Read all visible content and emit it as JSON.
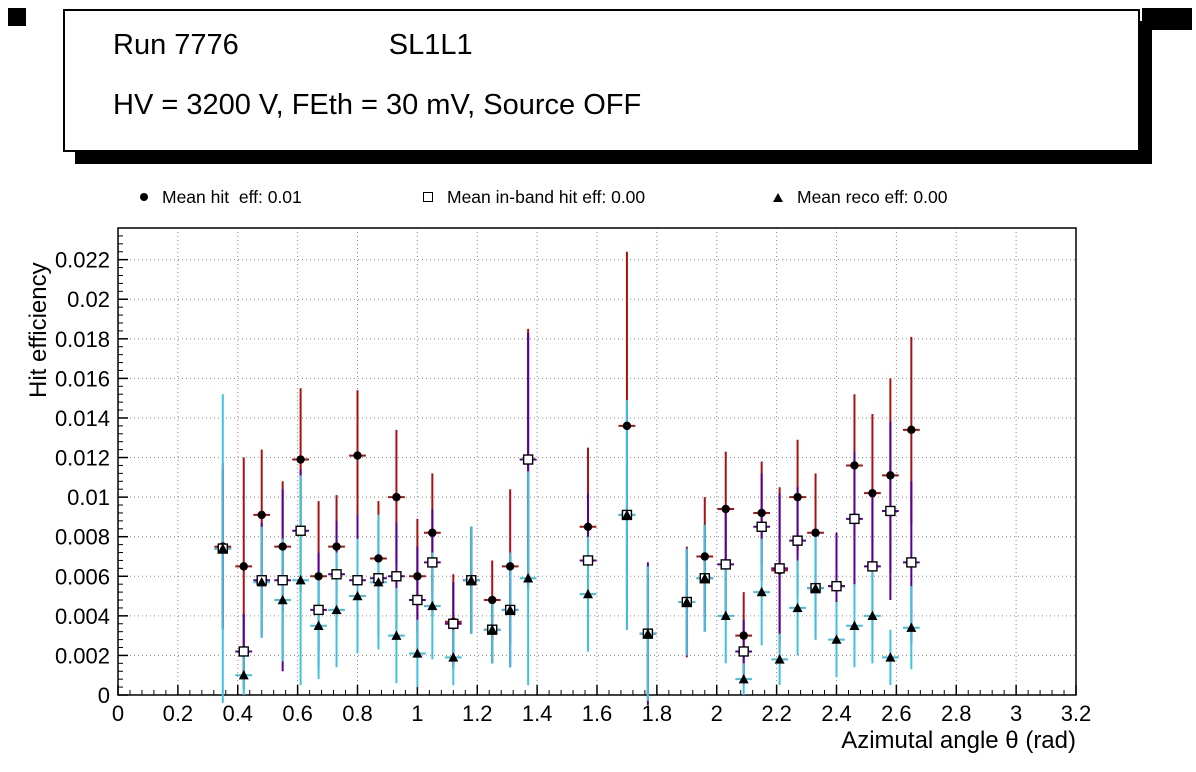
{
  "title_box": {
    "run": "Run 7776",
    "layer": "SL1L1",
    "conditions": "HV = 3200 V, FEth = 30 mV, Source OFF"
  },
  "legend": [
    {
      "marker": "filled-circle",
      "label": "Mean hit  eff: 0.01"
    },
    {
      "marker": "open-square",
      "label": "Mean in-band hit eff: 0.00"
    },
    {
      "marker": "filled-triangle",
      "label": "Mean reco eff: 0.00"
    }
  ],
  "chart_data": {
    "type": "scatter",
    "title": "Run 7776 SL1L1, HV = 3200 V, FEth = 30 mV, Source OFF",
    "xlabel": "Azimutal angle θ (rad)",
    "ylabel": "Hit efficiency",
    "xlim": [
      0,
      3.2
    ],
    "ylim": [
      0,
      0.0236
    ],
    "xticks": [
      0,
      0.2,
      0.4,
      0.6,
      0.8,
      1,
      1.2,
      1.4,
      1.6,
      1.8,
      2,
      2.2,
      2.4,
      2.6,
      2.8,
      3,
      3.2
    ],
    "yticks": [
      0,
      0.002,
      0.004,
      0.006,
      0.008,
      0.01,
      0.012,
      0.014,
      0.016,
      0.018,
      0.02,
      0.022
    ],
    "grid": true,
    "grid_style": "dotted",
    "grid_color": "#888888",
    "x_error": 0.028,
    "series": [
      {
        "name": "Mean hit eff",
        "legend_value": "0.01",
        "marker": "filled-circle",
        "marker_color": "#000000",
        "error_color": "#aa1111",
        "points": [
          [
            0.35,
            0.0075,
            0.0042
          ],
          [
            0.42,
            0.0065,
            0.0055
          ],
          [
            0.48,
            0.0091,
            0.0033
          ],
          [
            0.55,
            0.0075,
            0.0033
          ],
          [
            0.61,
            0.0119,
            0.0036
          ],
          [
            0.67,
            0.006,
            0.0038
          ],
          [
            0.73,
            0.0075,
            0.0026
          ],
          [
            0.8,
            0.0121,
            0.0033
          ],
          [
            0.87,
            0.0069,
            0.0029
          ],
          [
            0.93,
            0.01,
            0.0034
          ],
          [
            1.0,
            0.006,
            0.0029
          ],
          [
            1.05,
            0.0082,
            0.003
          ],
          [
            1.12,
            0.0037,
            0.0024
          ],
          [
            1.18,
            0.0058,
            0.0027
          ],
          [
            1.25,
            0.0048,
            0.002
          ],
          [
            1.31,
            0.0065,
            0.0039
          ],
          [
            1.37,
            0.0119,
            0.0066
          ],
          [
            1.57,
            0.0085,
            0.004
          ],
          [
            1.7,
            0.0136,
            0.0088
          ],
          [
            1.77,
            0.0031,
            0.0034
          ],
          [
            1.9,
            0.0047,
            0.0028
          ],
          [
            1.96,
            0.007,
            0.003
          ],
          [
            2.03,
            0.0094,
            0.0029
          ],
          [
            2.09,
            0.003,
            0.0022
          ],
          [
            2.15,
            0.0092,
            0.0026
          ],
          [
            2.21,
            0.0063,
            0.0042
          ],
          [
            2.27,
            0.01,
            0.0029
          ],
          [
            2.33,
            0.0082,
            0.003
          ],
          [
            2.4,
            0.0055,
            0.0027
          ],
          [
            2.46,
            0.0116,
            0.0036
          ],
          [
            2.52,
            0.0102,
            0.004
          ],
          [
            2.58,
            0.0111,
            0.0049
          ],
          [
            2.65,
            0.0134,
            0.0047
          ]
        ]
      },
      {
        "name": "Mean in-band hit eff",
        "legend_value": "0.00",
        "marker": "open-square",
        "marker_color": "#000000",
        "error_color": "#550099",
        "points": [
          [
            0.35,
            0.0074,
            0.004
          ],
          [
            0.42,
            0.0022,
            0.0019
          ],
          [
            0.48,
            0.0058,
            0.0029
          ],
          [
            0.55,
            0.0058,
            0.0046
          ],
          [
            0.61,
            0.0083,
            0.0031
          ],
          [
            0.67,
            0.0043,
            0.0029
          ],
          [
            0.73,
            0.0061,
            0.0027
          ],
          [
            0.8,
            0.0058,
            0.0033
          ],
          [
            0.87,
            0.0059,
            0.0029
          ],
          [
            0.93,
            0.006,
            0.0027
          ],
          [
            1.0,
            0.0048,
            0.0027
          ],
          [
            1.05,
            0.0067,
            0.0027
          ],
          [
            1.12,
            0.0036,
            0.0021
          ],
          [
            1.18,
            0.0058,
            0.0027
          ],
          [
            1.25,
            0.0033,
            0.0017
          ],
          [
            1.31,
            0.0043,
            0.0029
          ],
          [
            1.37,
            0.0119,
            0.0064
          ],
          [
            1.57,
            0.0068,
            0.0034
          ],
          [
            1.7,
            0.0091,
            0.0058
          ],
          [
            1.77,
            0.0031,
            0.0036
          ],
          [
            1.9,
            0.0047,
            0.0027
          ],
          [
            1.96,
            0.0059,
            0.0027
          ],
          [
            2.03,
            0.0066,
            0.0027
          ],
          [
            2.09,
            0.0022,
            0.0016
          ],
          [
            2.15,
            0.0085,
            0.0027
          ],
          [
            2.21,
            0.0064,
            0.0038
          ],
          [
            2.27,
            0.0078,
            0.0027
          ],
          [
            2.33,
            0.0054,
            0.0026
          ],
          [
            2.4,
            0.0055,
            0.0027
          ],
          [
            2.46,
            0.0089,
            0.0034
          ],
          [
            2.52,
            0.0065,
            0.0037
          ],
          [
            2.58,
            0.0093,
            0.0045
          ],
          [
            2.65,
            0.0067,
            0.0041
          ]
        ]
      },
      {
        "name": "Mean reco eff",
        "legend_value": "0.00",
        "marker": "filled-triangle",
        "marker_color": "#000000",
        "error_color": "#3fc3dd",
        "points": [
          [
            0.35,
            0.0074,
            0.0078
          ],
          [
            0.42,
            0.001,
            0.001
          ],
          [
            0.48,
            0.0057,
            0.0028
          ],
          [
            0.55,
            0.0048,
            0.0031
          ],
          [
            0.61,
            0.0058,
            0.0053
          ],
          [
            0.67,
            0.0035,
            0.0027
          ],
          [
            0.73,
            0.0043,
            0.0029
          ],
          [
            0.8,
            0.005,
            0.0029
          ],
          [
            0.87,
            0.0057,
            0.0034
          ],
          [
            0.93,
            0.003,
            0.0024
          ],
          [
            1.0,
            0.0021,
            0.0017
          ],
          [
            1.05,
            0.0045,
            0.0027
          ],
          [
            1.12,
            0.0019,
            0.0014
          ],
          [
            1.18,
            0.0058,
            0.0027
          ],
          [
            1.25,
            0.0033,
            0.0017
          ],
          [
            1.31,
            0.0043,
            0.0029
          ],
          [
            1.37,
            0.0059,
            0.0054
          ],
          [
            1.57,
            0.0051,
            0.0029
          ],
          [
            1.7,
            0.0091,
            0.0058
          ],
          [
            1.77,
            0.0031,
            0.0034
          ],
          [
            1.9,
            0.0047,
            0.0027
          ],
          [
            1.96,
            0.0059,
            0.0027
          ],
          [
            2.03,
            0.004,
            0.0024
          ],
          [
            2.09,
            0.0008,
            0.0008
          ],
          [
            2.15,
            0.0052,
            0.0027
          ],
          [
            2.21,
            0.0018,
            0.0013
          ],
          [
            2.27,
            0.0044,
            0.0024
          ],
          [
            2.33,
            0.0054,
            0.0026
          ],
          [
            2.4,
            0.0028,
            0.0019
          ],
          [
            2.46,
            0.0035,
            0.0021
          ],
          [
            2.52,
            0.004,
            0.0024
          ],
          [
            2.58,
            0.0019,
            0.0014
          ],
          [
            2.65,
            0.0034,
            0.0021
          ]
        ]
      }
    ]
  }
}
